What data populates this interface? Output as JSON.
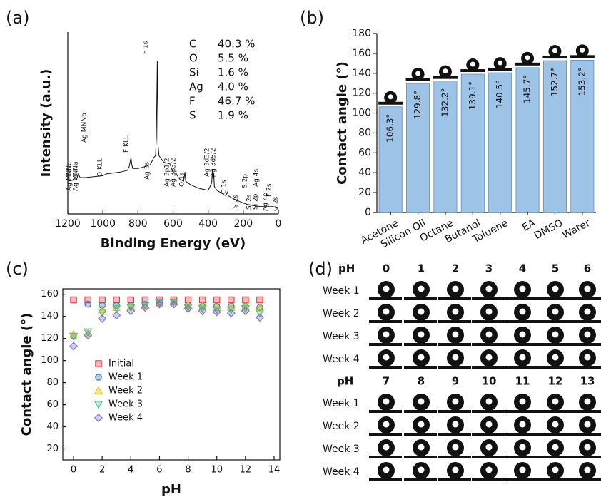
{
  "chart_data": [
    {
      "type": "line",
      "panel_label": "(a)",
      "xlabel": "Binding Energy (eV)",
      "ylabel": "Intensity (a.u.)",
      "x": [
        1200,
        1150,
        1140,
        1130,
        1100,
        1000,
        980,
        900,
        860,
        850,
        840,
        835,
        830,
        800,
        760,
        730,
        720,
        710,
        700,
        695,
        690,
        686,
        680,
        650,
        620,
        605,
        600,
        580,
        570,
        560,
        540,
        532,
        528,
        500,
        450,
        400,
        380,
        376,
        372,
        368,
        365,
        350,
        300,
        290,
        285,
        250,
        200,
        170,
        100,
        50,
        30,
        0
      ],
      "values": [
        18,
        19,
        22,
        20,
        20,
        21,
        22,
        23,
        24,
        26,
        31,
        27,
        25,
        25,
        26,
        27,
        29,
        31,
        32,
        42,
        84,
        38,
        32,
        28,
        28,
        24,
        23,
        22,
        20,
        19,
        18,
        23,
        18,
        16,
        14,
        13,
        17,
        24,
        19,
        22,
        15,
        13,
        10,
        12,
        10,
        8,
        6,
        5,
        4,
        4,
        4,
        3
      ],
      "color": "#111111",
      "xlim": [
        1200,
        0
      ],
      "xticks": [
        1200,
        1000,
        800,
        600,
        400,
        200,
        0
      ],
      "ylim": [
        0,
        100
      ],
      "annotations": [
        {
          "text": "Ag MNNc",
          "color": "#3aa17e"
        },
        {
          "text": "Ag MNNa",
          "color": "#3aa17e"
        },
        {
          "text": "Ag MNNb",
          "color": "#3aa17e"
        },
        {
          "text": "O KLL",
          "color": "#2e75b6"
        },
        {
          "text": "F KLL",
          "color": "#c55a11"
        },
        {
          "text": "Ag 3s",
          "color": "#3aa17e"
        },
        {
          "text": "F 1s",
          "color": "#c55a11"
        },
        {
          "text": "Ag 3p1/2",
          "color": "#3aa17e"
        },
        {
          "text": "Ag 3p3/2",
          "color": "#3aa17e"
        },
        {
          "text": "O 1s",
          "color": "#2e75b6"
        },
        {
          "text": "Ag 3d3/2",
          "color": "#3aa17e"
        },
        {
          "text": "Ag 3d5/2",
          "color": "#3aa17e"
        },
        {
          "text": "C 1s",
          "color": "#2e75b6"
        },
        {
          "text": "S 2s",
          "color": "#bf9000"
        },
        {
          "text": "S 2p",
          "color": "#bf9000"
        },
        {
          "text": "Si 2s",
          "color": "#c55a11"
        },
        {
          "text": "Si 2p",
          "color": "#c55a11"
        },
        {
          "text": "Ag 4s",
          "color": "#3aa17e"
        },
        {
          "text": "Ag 4p",
          "color": "#3aa17e"
        },
        {
          "text": "F 2s",
          "color": "#c55a11"
        },
        {
          "text": "O 2s",
          "color": "#2e75b6"
        }
      ],
      "composition": [
        {
          "element": "C",
          "percent": "40.3 %",
          "color": "#2e75b6"
        },
        {
          "element": "O",
          "percent": "5.5 %",
          "color": "#2e75b6"
        },
        {
          "element": "Si",
          "percent": "1.6 %",
          "color": "#c55a11"
        },
        {
          "element": "Ag",
          "percent": "4.0 %",
          "color": "#3aa17e"
        },
        {
          "element": "F",
          "percent": "46.7 %",
          "color": "#c0272d"
        },
        {
          "element": "S",
          "percent": "1.9 %",
          "color": "#bf9000"
        }
      ]
    },
    {
      "type": "bar",
      "panel_label": "(b)",
      "ylabel": "Contact angle (°)",
      "categories": [
        "Acetone",
        "Silicon Oil",
        "Octane",
        "Butanol",
        "Toluene",
        "EA",
        "DMSO",
        "Water"
      ],
      "values": [
        106.3,
        129.8,
        132.2,
        139.1,
        140.5,
        145.7,
        152.7,
        153.2
      ],
      "value_labels": [
        "106.3°",
        "129.8°",
        "132.2°",
        "139.1°",
        "140.5°",
        "145.7°",
        "152.7°",
        "153.2°"
      ],
      "color": "#9dc3e6",
      "ylim": [
        0,
        180
      ],
      "yticks": [
        0,
        20,
        40,
        60,
        80,
        100,
        120,
        140,
        160,
        180
      ]
    },
    {
      "type": "scatter",
      "panel_label": "(c)",
      "xlabel": "pH",
      "ylabel": "Contact angle (°)",
      "x": [
        0,
        1,
        2,
        3,
        4,
        5,
        6,
        7,
        8,
        9,
        10,
        11,
        12,
        13
      ],
      "series": [
        {
          "name": "Initial",
          "color": "#e8393e",
          "marker": "square",
          "values": [
            155,
            155,
            155,
            155,
            155,
            155,
            155,
            155,
            155,
            155,
            155,
            155,
            155,
            155
          ]
        },
        {
          "name": "Week 1",
          "color": "#3a6fc4",
          "marker": "circle",
          "values": [
            122,
            151,
            150,
            150,
            150,
            151,
            153,
            153,
            150,
            149,
            149,
            149,
            149,
            148
          ]
        },
        {
          "name": "Week 2",
          "color": "#f5c400",
          "marker": "triangle-up",
          "values": [
            124,
            125,
            146,
            148,
            149,
            150,
            152,
            153,
            150,
            149,
            148,
            148,
            149,
            147
          ]
        },
        {
          "name": "Week 3",
          "color": "#4fbf86",
          "marker": "triangle-down",
          "values": [
            122,
            126,
            143,
            147,
            148,
            150,
            152,
            153,
            148,
            147,
            146,
            146,
            147,
            143
          ]
        },
        {
          "name": "Week 4",
          "color": "#7c6fc8",
          "marker": "diamond",
          "values": [
            113,
            123,
            138,
            141,
            145,
            148,
            151,
            151,
            147,
            145,
            144,
            143,
            145,
            139
          ]
        }
      ],
      "xlim": [
        -0.75,
        14.4
      ],
      "xticks": [
        0,
        2,
        4,
        6,
        8,
        10,
        12,
        14
      ],
      "ylim": [
        10,
        165
      ],
      "yticks": [
        20,
        40,
        60,
        80,
        100,
        120,
        140,
        160
      ],
      "legend": "lower left"
    }
  ],
  "panel_d": {
    "panel_label": "(d)",
    "blocks": [
      {
        "header": "pH",
        "header_color": "#c0272d",
        "ph": [
          0,
          1,
          2,
          3,
          4,
          5,
          6
        ],
        "ph_colors": [
          "#c0272d",
          "#c0272d",
          "#c0272d",
          "#c0272d",
          "#c0272d",
          "#c0272d",
          "#c0272d"
        ],
        "weeks": [
          "Week 1",
          "Week 2",
          "Week 3",
          "Week 4"
        ]
      },
      {
        "header": "pH",
        "header_color": "#2e75b6",
        "ph": [
          7,
          8,
          9,
          10,
          11,
          12,
          13
        ],
        "ph_colors": [
          "#111111",
          "#2e75b6",
          "#2e75b6",
          "#2e75b6",
          "#2e75b6",
          "#2e75b6",
          "#2e75b6"
        ],
        "weeks": [
          "Week 1",
          "Week 2",
          "Week 3",
          "Week 4"
        ]
      }
    ]
  }
}
